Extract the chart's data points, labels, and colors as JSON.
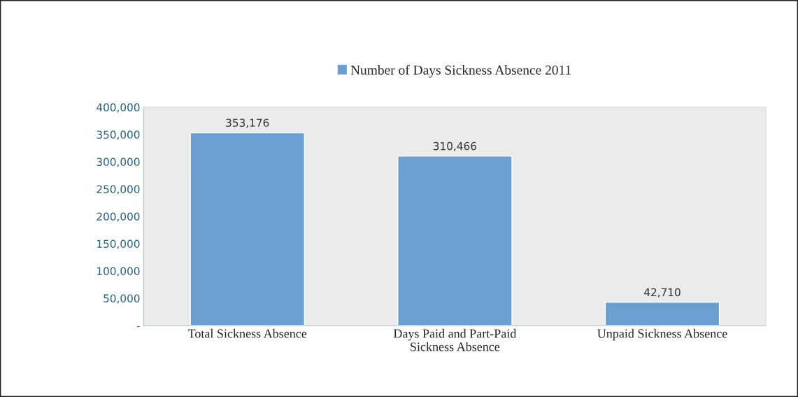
{
  "chart_data": {
    "type": "bar",
    "categories": [
      "Total Sickness Absence",
      "Days Paid and Part-Paid\nSickness Absence",
      "Unpaid Sickness Absence"
    ],
    "series": [
      {
        "name": "Number of Days Sickness Absence 2011",
        "color": "#6a9fd0",
        "values": [
          353176,
          310466,
          42710
        ]
      }
    ],
    "ylim": [
      0,
      400000
    ],
    "yticks": [
      {
        "value": 0,
        "label": "-"
      },
      {
        "value": 50000,
        "label": "50,000"
      },
      {
        "value": 100000,
        "label": "100,000"
      },
      {
        "value": 150000,
        "label": "150,000"
      },
      {
        "value": 200000,
        "label": "200,000"
      },
      {
        "value": 250000,
        "label": "250,000"
      },
      {
        "value": 300000,
        "label": "300,000"
      },
      {
        "value": 350000,
        "label": "350,000"
      },
      {
        "value": 400000,
        "label": "400,000"
      }
    ],
    "value_labels": [
      "353,176",
      "310,466",
      "42,710"
    ],
    "legend": "top",
    "grid": false
  }
}
